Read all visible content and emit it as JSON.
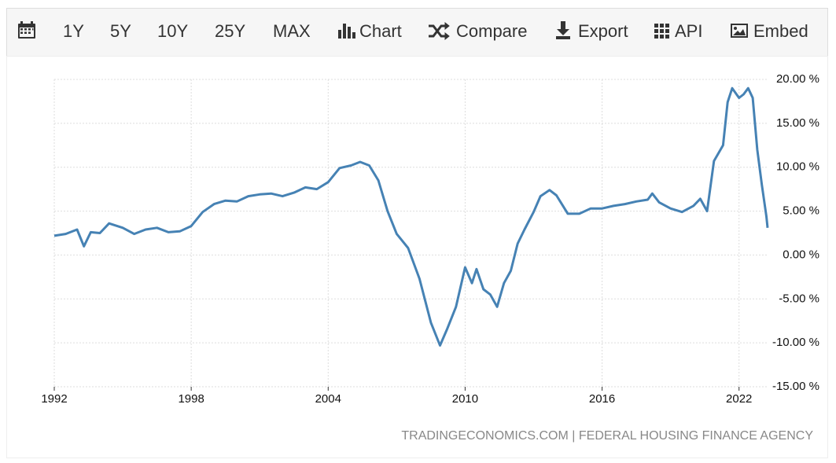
{
  "toolbar": [
    "1Y",
    "5Y",
    "10Y",
    "25Y",
    "MAX",
    "Chart",
    "Compare",
    "Export",
    "API",
    "Embed"
  ],
  "chart_data": {
    "type": "line",
    "color": "#4682b4",
    "source": "TRADINGECONOMICS.COM | FEDERAL HOUSING FINANCE AGENCY",
    "x": [
      1992.0,
      1992.5,
      1993.0,
      1993.3,
      1993.6,
      1994.0,
      1994.4,
      1995.0,
      1995.5,
      1996.0,
      1996.5,
      1997.0,
      1997.5,
      1998.0,
      1998.5,
      1999.0,
      1999.5,
      2000.0,
      2000.5,
      2001.0,
      2001.5,
      2002.0,
      2002.5,
      2003.0,
      2003.5,
      2004.0,
      2004.5,
      2005.0,
      2005.4,
      2005.8,
      2006.2,
      2006.6,
      2007.0,
      2007.5,
      2008.0,
      2008.5,
      2008.9,
      2009.2,
      2009.6,
      2010.0,
      2010.3,
      2010.5,
      2010.8,
      2011.1,
      2011.4,
      2011.7,
      2012.0,
      2012.3,
      2012.6,
      2013.0,
      2013.3,
      2013.7,
      2014.0,
      2014.5,
      2015.0,
      2015.5,
      2016.0,
      2016.5,
      2017.0,
      2017.5,
      2018.0,
      2018.2,
      2018.5,
      2019.0,
      2019.5,
      2020.0,
      2020.3,
      2020.6,
      2020.9,
      2021.3,
      2021.5,
      2021.7,
      2022.0,
      2022.2,
      2022.4,
      2022.6,
      2022.8,
      2023.0,
      2023.2,
      2023.25
    ],
    "values": [
      2.2,
      2.4,
      2.9,
      1.0,
      2.6,
      2.5,
      3.6,
      3.1,
      2.4,
      2.9,
      3.1,
      2.6,
      2.7,
      3.3,
      4.9,
      5.8,
      6.2,
      6.1,
      6.7,
      6.9,
      7.0,
      6.7,
      7.1,
      7.7,
      7.5,
      8.3,
      9.9,
      10.2,
      10.6,
      10.2,
      8.5,
      5.0,
      2.4,
      0.8,
      -2.7,
      -7.7,
      -10.3,
      -8.5,
      -5.9,
      -1.4,
      -3.2,
      -1.6,
      -3.9,
      -4.5,
      -5.9,
      -3.2,
      -1.8,
      1.3,
      2.9,
      4.9,
      6.7,
      7.4,
      6.8,
      4.7,
      4.7,
      5.3,
      5.3,
      5.6,
      5.8,
      6.1,
      6.3,
      7.0,
      6.0,
      5.3,
      4.9,
      5.6,
      6.4,
      5.0,
      10.7,
      12.5,
      17.4,
      19.0,
      17.9,
      18.3,
      19.0,
      17.9,
      12.0,
      8.0,
      4.4,
      3.1
    ],
    "xlim": [
      1992,
      2023.25
    ],
    "xticks": [
      1992,
      1998,
      2004,
      2010,
      2016,
      2022
    ],
    "ylim": [
      -15,
      20
    ],
    "yticks": [
      {
        "value": -15,
        "label": "-15.00 %"
      },
      {
        "value": -10,
        "label": "-10.00 %"
      },
      {
        "value": -5,
        "label": "-5.00 %"
      },
      {
        "value": 0,
        "label": "0.00 %"
      },
      {
        "value": 5,
        "label": "5.00 %"
      },
      {
        "value": 10,
        "label": "10.00 %"
      },
      {
        "value": 15,
        "label": "15.00 %"
      },
      {
        "value": 20,
        "label": "20.00 %"
      }
    ],
    "grid": true
  }
}
